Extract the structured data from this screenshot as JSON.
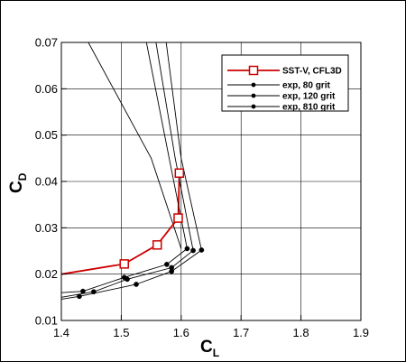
{
  "chart_data": {
    "type": "line",
    "xlabel": "C",
    "xlabel_sub": "L",
    "ylabel": "C",
    "ylabel_sub": "D",
    "xlim": [
      1.4,
      1.9
    ],
    "ylim": [
      0.01,
      0.07
    ],
    "xticks": [
      1.4,
      1.5,
      1.6,
      1.7,
      1.8,
      1.9
    ],
    "yticks": [
      0.01,
      0.02,
      0.03,
      0.04,
      0.05,
      0.06,
      0.07
    ],
    "xtick_labels": [
      "1.4",
      "1.5",
      "1.6",
      "1.7",
      "1.8",
      "1.9"
    ],
    "ytick_labels": [
      "0.01",
      "0.02",
      "0.03",
      "0.04",
      "0.05",
      "0.06",
      "0.07"
    ],
    "grid": true,
    "legend_position": "top-right",
    "series": [
      {
        "name": "SST-V, CFL3D",
        "color": "#cc0000",
        "marker": "square",
        "points": [
          [
            1.4,
            0.02
          ],
          [
            1.505,
            0.0222
          ],
          [
            1.56,
            0.0263
          ],
          [
            1.595,
            0.0321
          ],
          [
            1.597,
            0.0418
          ]
        ]
      },
      {
        "name": "exp, 80 grit",
        "color": "#000000",
        "marker": "circle",
        "points": [
          [
            1.4,
            0.016
          ],
          [
            1.436,
            0.0163
          ],
          [
            1.505,
            0.0193
          ],
          [
            1.576,
            0.0221
          ],
          [
            1.61,
            0.0255
          ],
          [
            1.58,
            0.045
          ],
          [
            1.542,
            0.07
          ]
        ]
      },
      {
        "name": "exp, 120 grit",
        "color": "#000000",
        "marker": "circle",
        "points": [
          [
            1.4,
            0.015
          ],
          [
            1.454,
            0.0162
          ],
          [
            1.51,
            0.0189
          ],
          [
            1.584,
            0.0214
          ],
          [
            1.62,
            0.0251
          ],
          [
            1.59,
            0.045
          ],
          [
            1.558,
            0.07
          ]
        ]
      },
      {
        "name": "exp, 810 grit",
        "color": "#000000",
        "marker": "circle",
        "points": [
          [
            1.4,
            0.0146
          ],
          [
            1.43,
            0.0152
          ],
          [
            1.525,
            0.0178
          ],
          [
            1.584,
            0.0206
          ],
          [
            1.634,
            0.0252
          ],
          [
            1.6,
            0.045
          ],
          [
            1.575,
            0.07
          ]
        ]
      }
    ],
    "extra_lines": [
      {
        "color": "#000000",
        "points": [
          [
            1.6,
            0.0255
          ],
          [
            1.55,
            0.045
          ],
          [
            1.445,
            0.07
          ]
        ]
      }
    ]
  }
}
